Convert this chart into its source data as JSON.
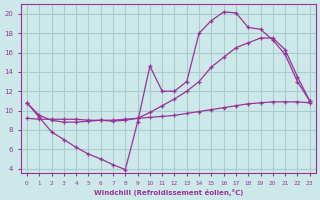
{
  "xlabel": "Windchill (Refroidissement éolien,°C)",
  "bg_color": "#cce8e8",
  "grid_color": "#aacccc",
  "line_color": "#993399",
  "curve1_x": [
    0,
    1,
    2,
    3,
    4,
    5,
    6,
    7,
    8,
    9,
    10,
    11,
    12,
    13,
    14,
    15,
    16,
    17,
    18,
    19,
    20,
    21,
    22,
    23
  ],
  "curve1_y": [
    10.8,
    9.3,
    7.8,
    7.0,
    6.2,
    5.5,
    5.0,
    4.4,
    3.9,
    8.8,
    14.6,
    12.0,
    12.0,
    13.0,
    18.0,
    19.3,
    20.2,
    20.1,
    18.6,
    18.4,
    17.3,
    15.8,
    13.0,
    11.0
  ],
  "curve2_x": [
    0,
    1,
    2,
    3,
    4,
    5,
    6,
    7,
    8,
    9,
    10,
    11,
    12,
    13,
    14,
    15,
    16,
    17,
    18,
    19,
    20,
    21,
    22,
    23
  ],
  "curve2_y": [
    10.8,
    9.5,
    9.0,
    8.8,
    8.8,
    8.9,
    9.0,
    8.9,
    9.0,
    9.2,
    9.8,
    10.5,
    11.2,
    12.0,
    13.0,
    14.5,
    15.5,
    16.5,
    17.0,
    17.5,
    17.5,
    16.3,
    13.5,
    11.0
  ],
  "curve3_x": [
    0,
    1,
    2,
    3,
    4,
    5,
    6,
    7,
    8,
    9,
    10,
    11,
    12,
    13,
    14,
    15,
    16,
    17,
    18,
    19,
    20,
    21,
    22,
    23
  ],
  "curve3_y": [
    9.2,
    9.1,
    9.1,
    9.1,
    9.1,
    9.0,
    9.0,
    9.0,
    9.1,
    9.2,
    9.3,
    9.4,
    9.5,
    9.7,
    9.9,
    10.1,
    10.3,
    10.5,
    10.7,
    10.8,
    10.9,
    10.9,
    10.9,
    10.8
  ],
  "xlim": [
    -0.5,
    23.5
  ],
  "ylim": [
    3.5,
    21.0
  ],
  "xticks": [
    0,
    1,
    2,
    3,
    4,
    5,
    6,
    7,
    8,
    9,
    10,
    11,
    12,
    13,
    14,
    15,
    16,
    17,
    18,
    19,
    20,
    21,
    22,
    23
  ],
  "yticks": [
    4,
    6,
    8,
    10,
    12,
    14,
    16,
    18,
    20
  ]
}
